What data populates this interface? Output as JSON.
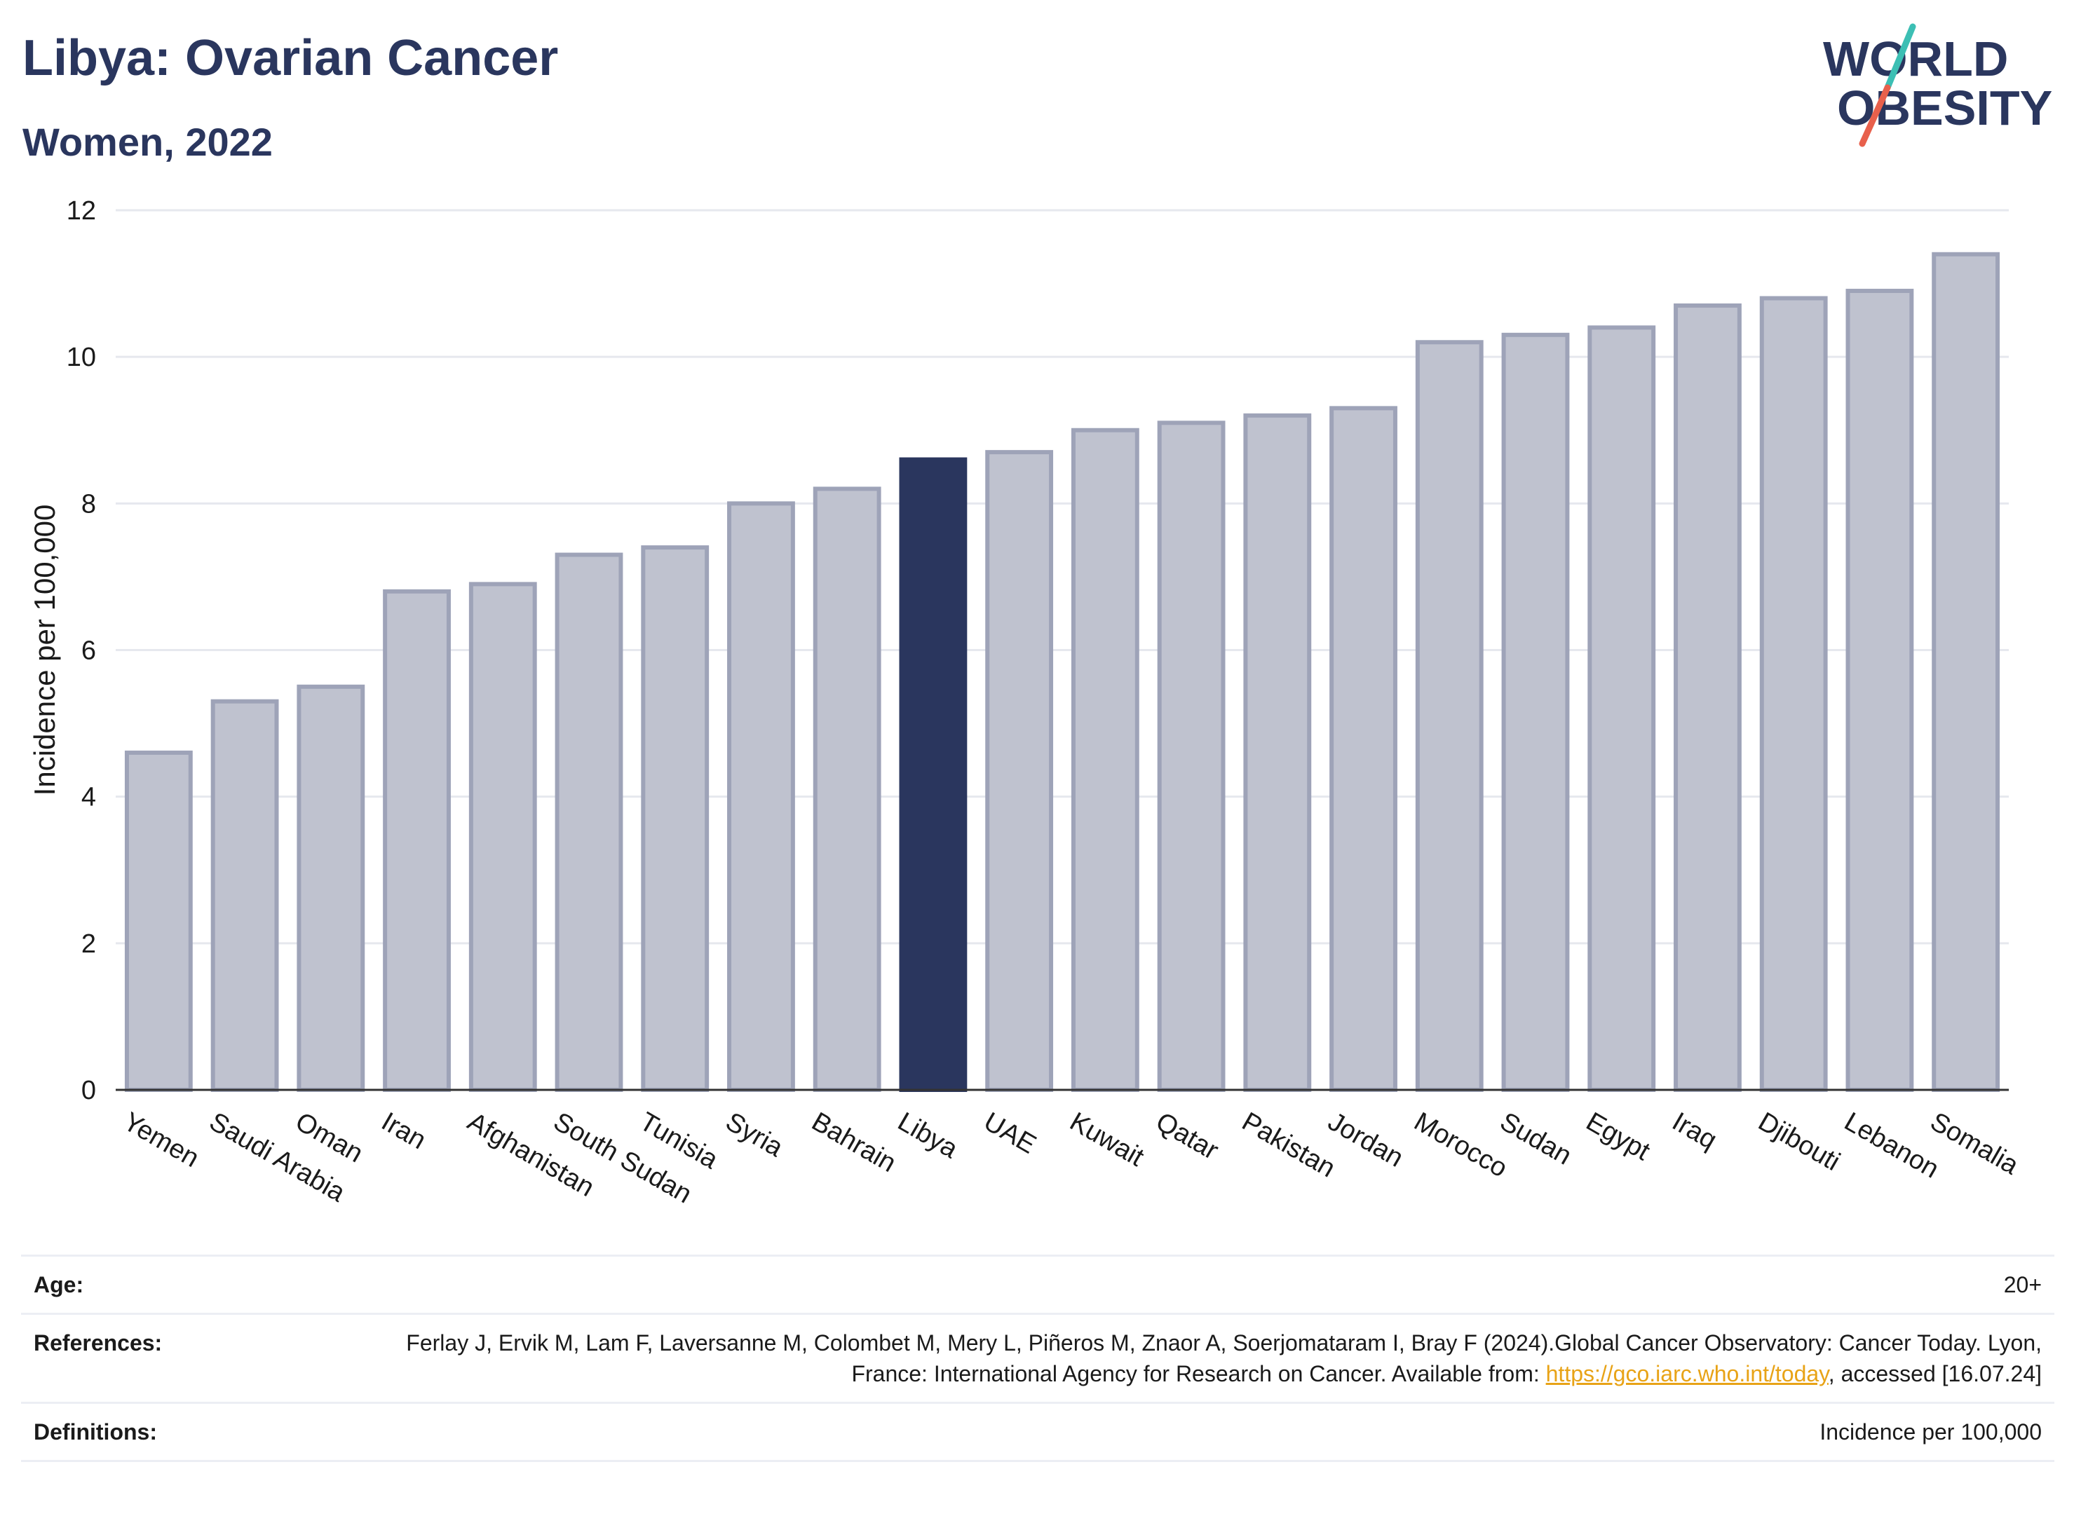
{
  "header": {
    "title": "Libya: Ovarian Cancer",
    "subtitle": "Women, 2022"
  },
  "logo": {
    "line1": "WORLD",
    "line2": "OBESITY",
    "colors": {
      "text": "#2a365e",
      "slash_top": "#3cbfb4",
      "slash_bottom": "#e8604c"
    }
  },
  "chart_data": {
    "type": "bar",
    "categories": [
      "Yemen",
      "Saudi Arabia",
      "Oman",
      "Iran",
      "Afghanistan",
      "South Sudan",
      "Tunisia",
      "Syria",
      "Bahrain",
      "Libya",
      "UAE",
      "Kuwait",
      "Qatar",
      "Pakistan",
      "Jordan",
      "Morocco",
      "Sudan",
      "Egypt",
      "Iraq",
      "Djibouti",
      "Lebanon",
      "Somalia"
    ],
    "values": [
      4.6,
      5.3,
      5.5,
      6.8,
      6.9,
      7.3,
      7.4,
      8.0,
      8.2,
      8.6,
      8.7,
      9.0,
      9.1,
      9.2,
      9.3,
      10.2,
      10.3,
      10.4,
      10.7,
      10.8,
      10.9,
      11.4
    ],
    "highlight": "Libya",
    "xlabel": "",
    "ylabel": "Incidence per 100,000",
    "ylim": [
      0,
      12
    ],
    "yticks": [
      0,
      2,
      4,
      6,
      8,
      10,
      12
    ],
    "grid": true,
    "colors": {
      "bar": "#bfc2cf",
      "bar_border": "#9ea3b8",
      "highlight": "#2a365e"
    }
  },
  "info": {
    "age_label": "Age:",
    "age_value": "20+",
    "references_label": "References:",
    "references_text": "Ferlay J, Ervik M, Lam F, Laversanne M, Colombet M, Mery L, Piñeros M, Znaor A, Soerjomataram I, Bray F (2024).Global Cancer Observatory: Cancer Today. Lyon, France: International Agency for Research on Cancer. Available from: ",
    "references_link": "https://gco.iarc.who.int/today",
    "references_suffix": ", accessed [16.07.24]",
    "definitions_label": "Definitions:",
    "definitions_value": "Incidence per 100,000"
  }
}
